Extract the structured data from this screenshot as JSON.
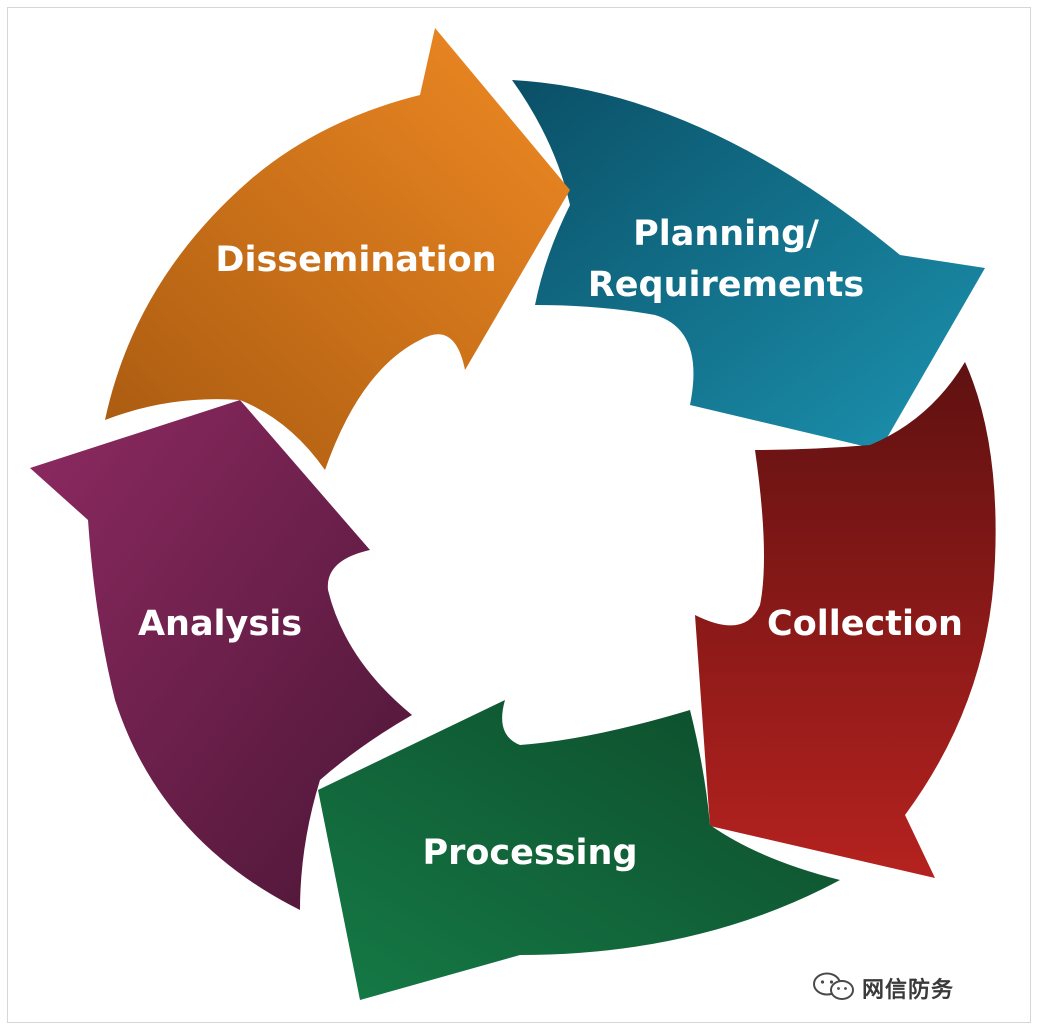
{
  "cycle": {
    "stages": [
      {
        "id": "planning",
        "lines": [
          "Planning/",
          "Requirements"
        ],
        "color_light": "#1c93b0",
        "color_dark": "#0a4f66"
      },
      {
        "id": "collection",
        "lines": [
          "Collection"
        ],
        "color_light": "#b5221f",
        "color_dark": "#5f1111"
      },
      {
        "id": "processing",
        "lines": [
          "Processing"
        ],
        "color_light": "#157a46",
        "color_dark": "#0d4a2a"
      },
      {
        "id": "analysis",
        "lines": [
          "Analysis"
        ],
        "color_light": "#8e2a62",
        "color_dark": "#4b1635"
      },
      {
        "id": "dissemination",
        "lines": [
          "Dissemination"
        ],
        "color_light": "#f08a24",
        "color_dark": "#a85a10"
      }
    ]
  },
  "watermark": {
    "icon": "wechat-icon",
    "text": "网信防务"
  }
}
